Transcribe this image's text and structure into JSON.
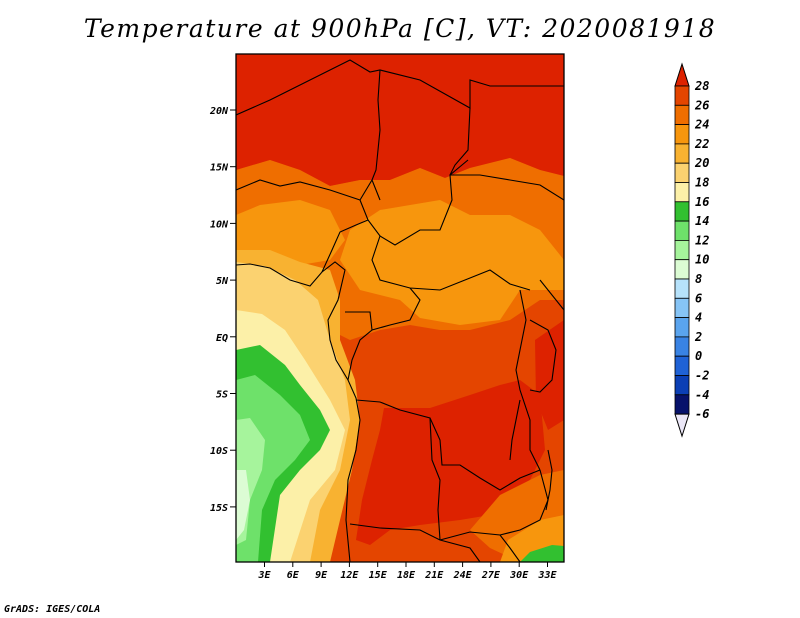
{
  "title": "Temperature at 900hPa [C], VT: 2020081918",
  "credit": "GrADS: IGES/COLA",
  "map": {
    "lon_ticks": [
      "3E",
      "6E",
      "9E",
      "12E",
      "15E",
      "18E",
      "21E",
      "24E",
      "27E",
      "30E",
      "33E"
    ],
    "lat_ticks": [
      "20N",
      "15N",
      "10N",
      "5N",
      "EQ",
      "5S",
      "10S",
      "15S"
    ]
  },
  "colorbar": {
    "labels": [
      "28",
      "26",
      "24",
      "22",
      "20",
      "18",
      "16",
      "14",
      "12",
      "10",
      "8",
      "6",
      "4",
      "2",
      "0",
      "-2",
      "-4",
      "-6"
    ],
    "colors": [
      "#dd2200",
      "#e44500",
      "#ef6e00",
      "#f7960d",
      "#f8b231",
      "#fbd270",
      "#fcf0a8",
      "#32c030",
      "#6ee16a",
      "#a6f49c",
      "#dcfcd4",
      "#b6e2fb",
      "#86c4f6",
      "#5aa4ee",
      "#3983e4",
      "#1f62d6",
      "#0b3fb5",
      "#07126b",
      "#ebe7f7"
    ]
  }
}
